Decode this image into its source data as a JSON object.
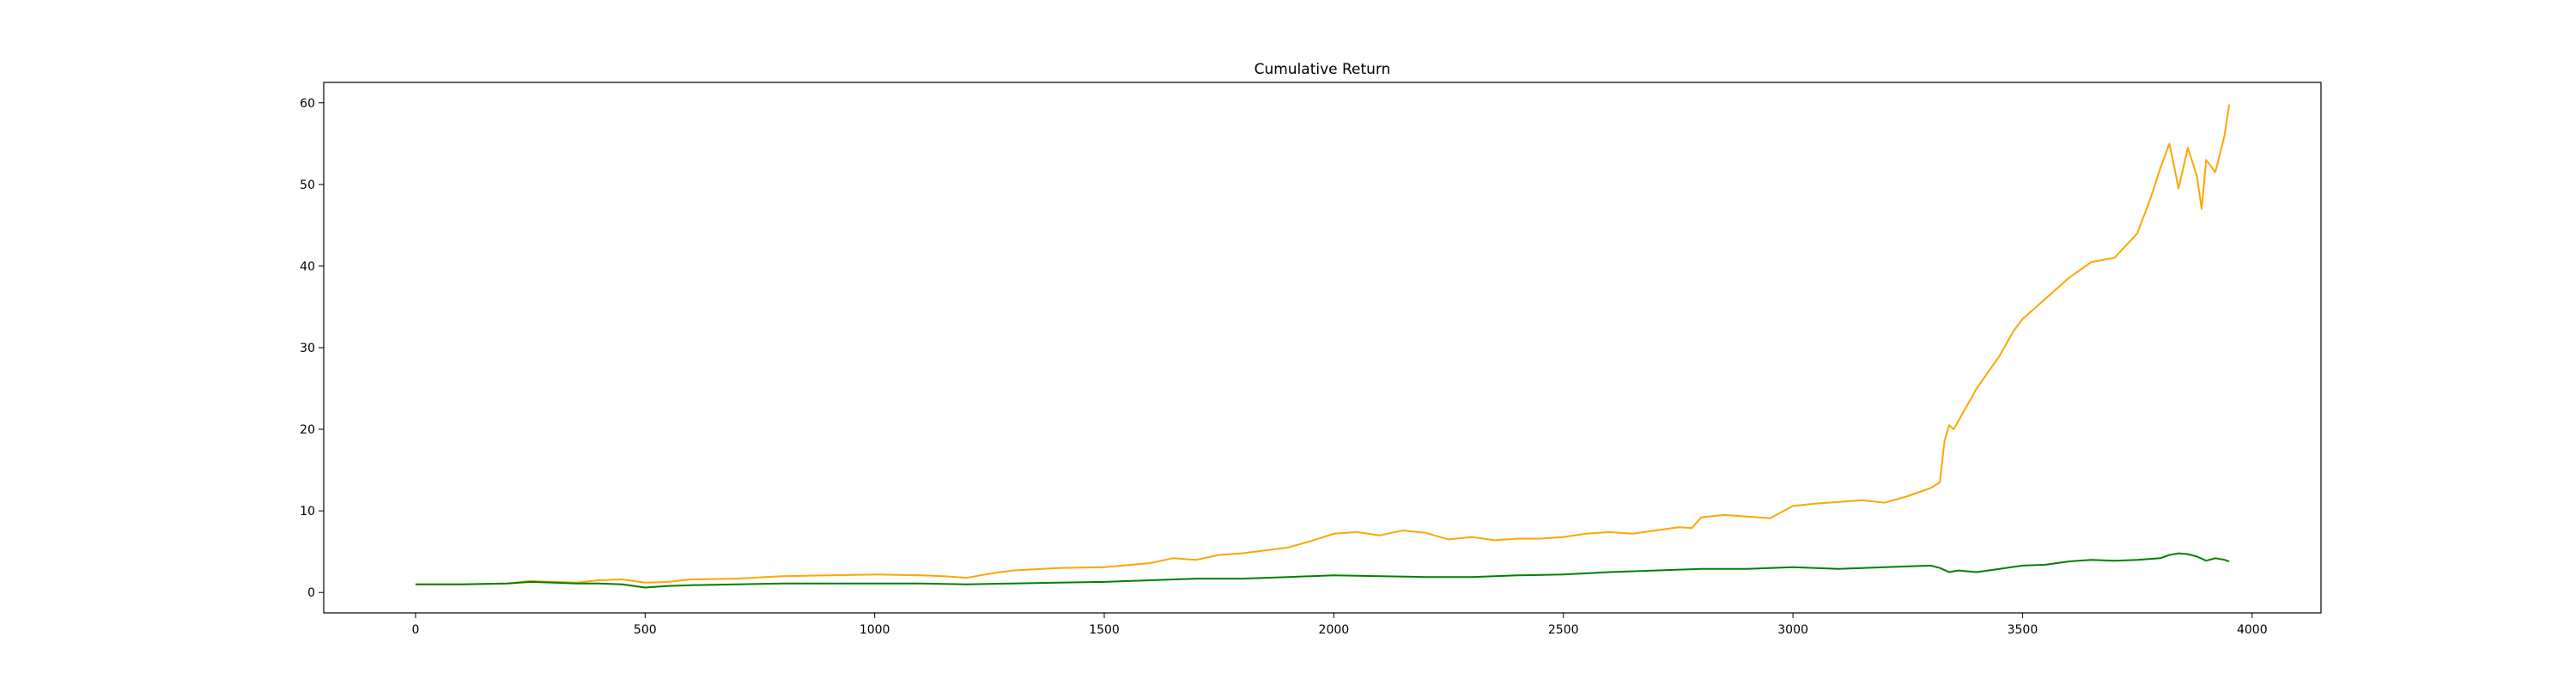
{
  "chart_data": {
    "type": "line",
    "title": "Cumulative Return",
    "xlabel": "",
    "ylabel": "",
    "xlim": [
      -200,
      4150
    ],
    "ylim": [
      -2.5,
      62.5
    ],
    "grid": false,
    "legend": "none",
    "x_ticks": [
      0,
      500,
      1000,
      1500,
      2000,
      2500,
      3000,
      3500,
      4000
    ],
    "x_tick_labels": [
      "0",
      "500",
      "1000",
      "1500",
      "2000",
      "2500",
      "3000",
      "3500",
      "4000"
    ],
    "y_ticks": [
      0,
      10,
      20,
      30,
      40,
      50,
      60
    ],
    "y_tick_labels": [
      "0",
      "10",
      "20",
      "30",
      "40",
      "50",
      "60"
    ],
    "series": [
      {
        "color": "#ffa500",
        "x": [
          0,
          100,
          200,
          250,
          300,
          350,
          400,
          450,
          500,
          550,
          600,
          700,
          800,
          900,
          1000,
          1100,
          1150,
          1200,
          1250,
          1300,
          1400,
          1500,
          1600,
          1650,
          1700,
          1750,
          1800,
          1900,
          1950,
          2000,
          2050,
          2100,
          2150,
          2200,
          2250,
          2300,
          2350,
          2400,
          2450,
          2500,
          2550,
          2600,
          2650,
          2700,
          2750,
          2780,
          2800,
          2850,
          2900,
          2950,
          3000,
          3050,
          3100,
          3150,
          3200,
          3250,
          3300,
          3320,
          3330,
          3340,
          3350,
          3380,
          3400,
          3450,
          3480,
          3500,
          3550,
          3600,
          3650,
          3700,
          3750,
          3780,
          3800,
          3820,
          3840,
          3860,
          3880,
          3890,
          3900,
          3920,
          3940,
          3950
        ],
        "y": [
          1.0,
          1.0,
          1.1,
          1.4,
          1.3,
          1.2,
          1.5,
          1.6,
          1.2,
          1.3,
          1.6,
          1.7,
          2.0,
          2.1,
          2.2,
          2.1,
          2.0,
          1.8,
          2.3,
          2.7,
          3.0,
          3.1,
          3.6,
          4.2,
          4.0,
          4.6,
          4.8,
          5.5,
          6.3,
          7.2,
          7.4,
          7.0,
          7.6,
          7.3,
          6.5,
          6.8,
          6.4,
          6.6,
          6.6,
          6.8,
          7.2,
          7.4,
          7.2,
          7.6,
          8.0,
          7.9,
          9.2,
          9.5,
          9.3,
          9.1,
          10.6,
          10.9,
          11.1,
          11.3,
          11.0,
          11.8,
          12.8,
          13.5,
          18.5,
          20.5,
          20.0,
          23.0,
          25.0,
          29.0,
          32.0,
          33.5,
          36.0,
          38.5,
          40.5,
          41.0,
          44.0,
          48.5,
          52.0,
          55.0,
          49.5,
          54.5,
          51.0,
          47.0,
          53.0,
          51.5,
          56.0,
          59.8
        ]
      },
      {
        "color": "#008000",
        "x": [
          0,
          100,
          200,
          250,
          300,
          350,
          400,
          450,
          500,
          550,
          600,
          700,
          800,
          900,
          1000,
          1100,
          1200,
          1300,
          1400,
          1500,
          1600,
          1700,
          1800,
          1900,
          2000,
          2100,
          2200,
          2300,
          2400,
          2500,
          2600,
          2700,
          2800,
          2900,
          3000,
          3100,
          3200,
          3300,
          3320,
          3340,
          3360,
          3400,
          3450,
          3500,
          3550,
          3600,
          3650,
          3700,
          3750,
          3800,
          3820,
          3840,
          3860,
          3880,
          3900,
          3920,
          3940,
          3950
        ],
        "y": [
          1.0,
          1.0,
          1.1,
          1.3,
          1.2,
          1.1,
          1.1,
          1.0,
          0.6,
          0.8,
          0.9,
          1.0,
          1.1,
          1.1,
          1.1,
          1.1,
          1.0,
          1.1,
          1.2,
          1.3,
          1.5,
          1.7,
          1.7,
          1.9,
          2.1,
          2.0,
          1.9,
          1.9,
          2.1,
          2.2,
          2.5,
          2.7,
          2.9,
          2.9,
          3.1,
          2.9,
          3.1,
          3.3,
          3.0,
          2.5,
          2.7,
          2.5,
          2.9,
          3.3,
          3.4,
          3.8,
          4.0,
          3.9,
          4.0,
          4.2,
          4.6,
          4.8,
          4.7,
          4.4,
          3.9,
          4.2,
          4.0,
          3.8
        ]
      }
    ]
  }
}
